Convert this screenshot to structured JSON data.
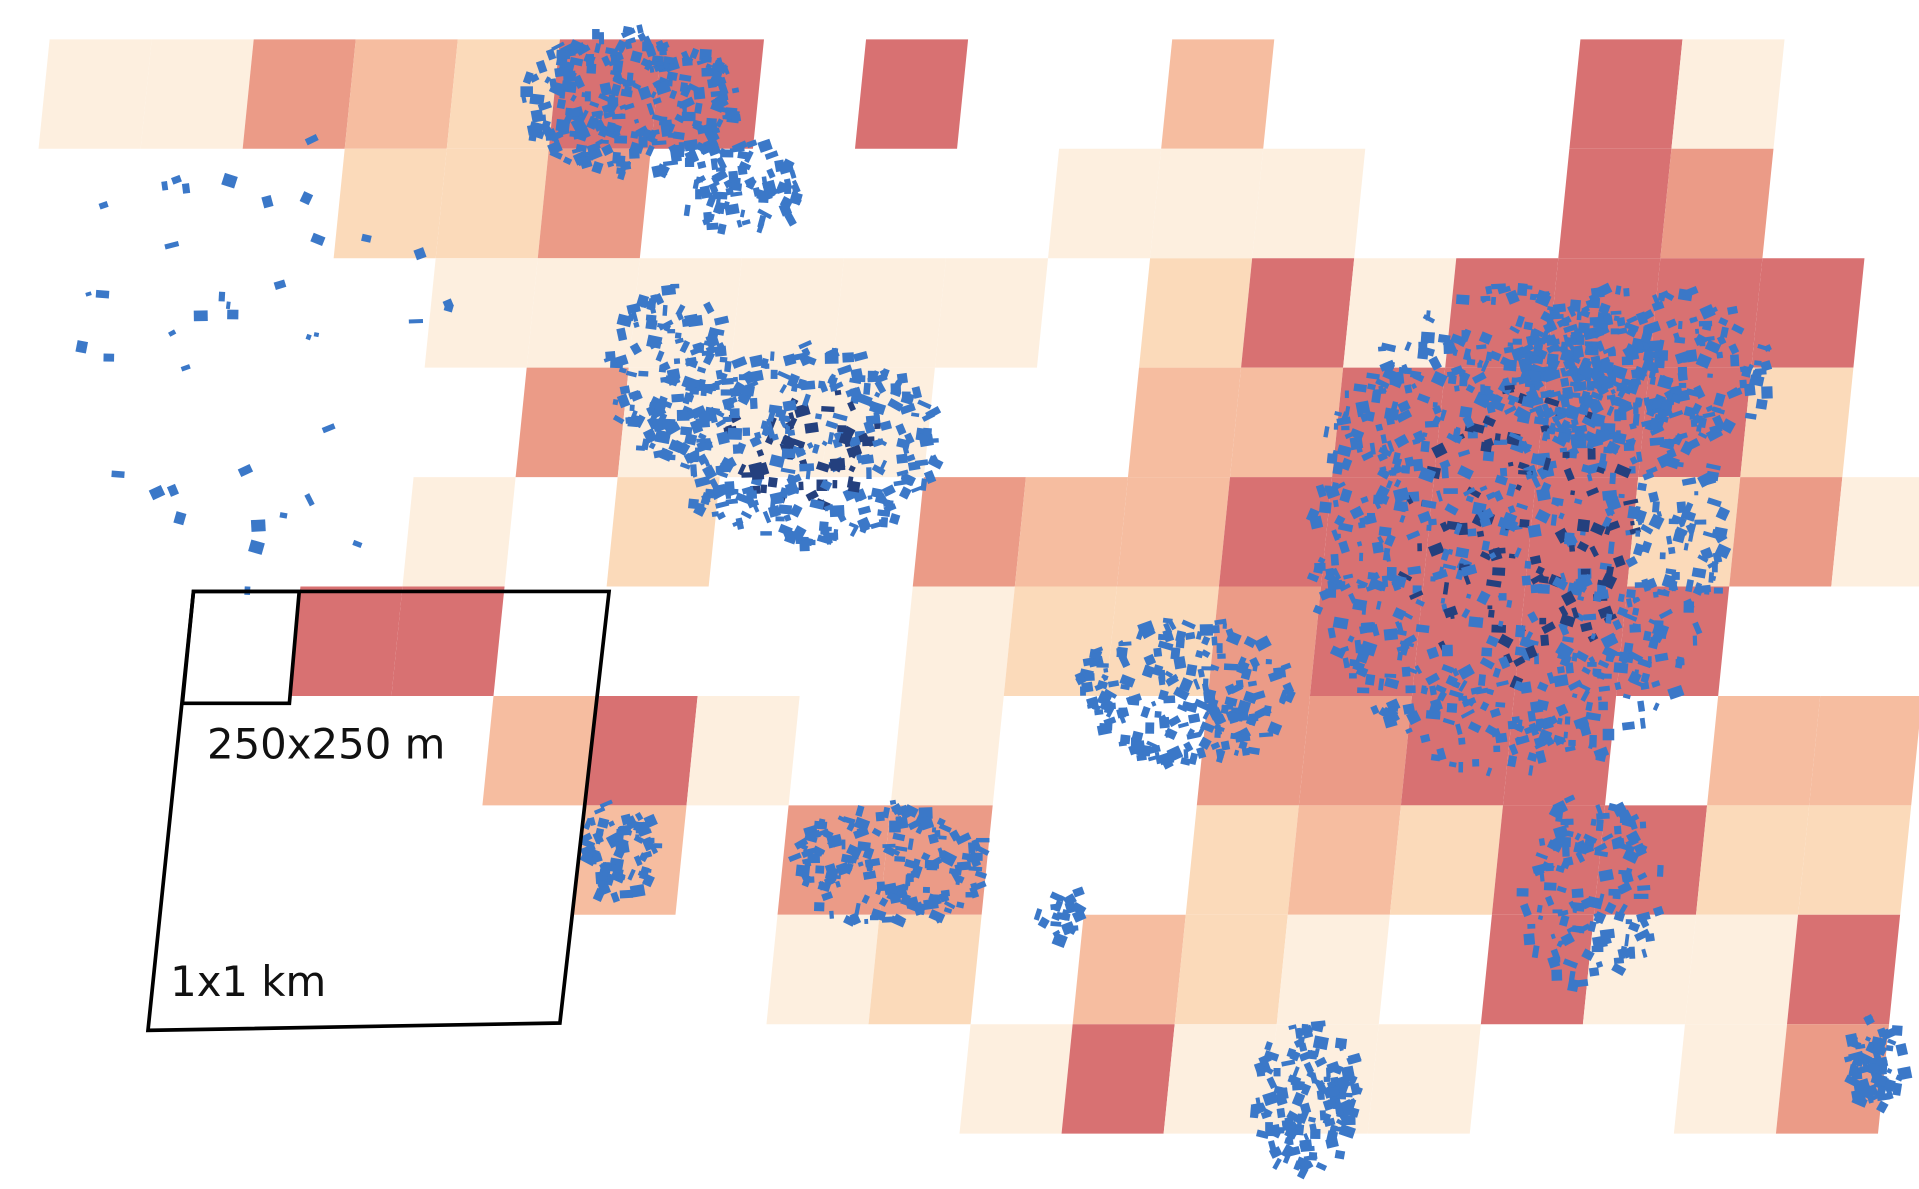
{
  "labels": {
    "small_cell": "250x250 m",
    "large_cell": "1x1 km"
  }
}
